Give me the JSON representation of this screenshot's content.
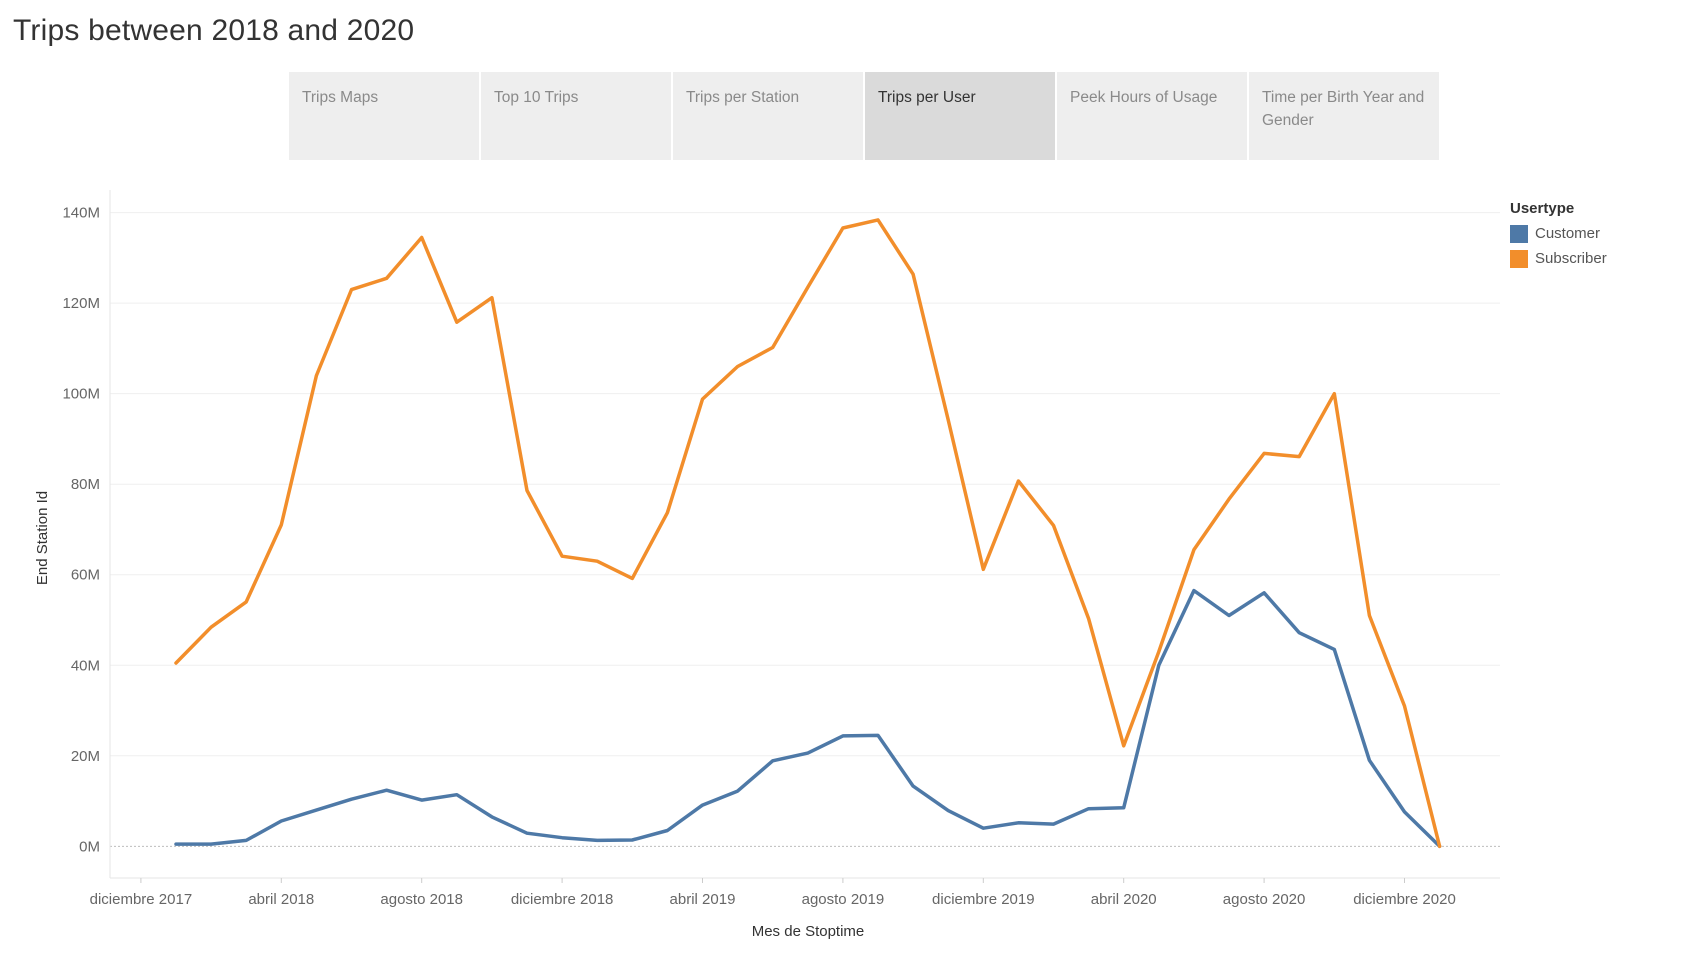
{
  "page_title": "Trips between 2018 and 2020",
  "tabs": [
    {
      "label": "Trips Maps",
      "active": false
    },
    {
      "label": "Top 10 Trips",
      "active": false
    },
    {
      "label": "Trips per Station",
      "active": false
    },
    {
      "label": "Trips per User",
      "active": true
    },
    {
      "label": "Peek Hours of Usage",
      "active": false
    },
    {
      "label": "Time per Birth Year and Gender",
      "active": false
    }
  ],
  "chart_data": {
    "type": "line",
    "xlabel": "Mes de Stoptime",
    "ylabel": "End Station Id",
    "x_months": [
      "2018-01",
      "2018-02",
      "2018-03",
      "2018-04",
      "2018-05",
      "2018-06",
      "2018-07",
      "2018-08",
      "2018-09",
      "2018-10",
      "2018-11",
      "2018-12",
      "2019-01",
      "2019-02",
      "2019-03",
      "2019-04",
      "2019-05",
      "2019-06",
      "2019-07",
      "2019-08",
      "2019-09",
      "2019-10",
      "2019-11",
      "2019-12",
      "2020-01",
      "2020-02",
      "2020-03",
      "2020-04",
      "2020-05",
      "2020-06",
      "2020-07",
      "2020-08",
      "2020-09",
      "2020-10",
      "2020-11",
      "2020-12",
      "2021-01"
    ],
    "x_ticks": [
      {
        "month": "2017-12",
        "label": "diciembre 2017"
      },
      {
        "month": "2018-04",
        "label": "abril 2018"
      },
      {
        "month": "2018-08",
        "label": "agosto 2018"
      },
      {
        "month": "2018-12",
        "label": "diciembre 2018"
      },
      {
        "month": "2019-04",
        "label": "abril 2019"
      },
      {
        "month": "2019-08",
        "label": "agosto 2019"
      },
      {
        "month": "2019-12",
        "label": "diciembre 2019"
      },
      {
        "month": "2020-04",
        "label": "abril 2020"
      },
      {
        "month": "2020-08",
        "label": "agosto 2020"
      },
      {
        "month": "2020-12",
        "label": "diciembre 2020"
      }
    ],
    "y_ticks": [
      {
        "value": 0,
        "label": "0M"
      },
      {
        "value": 20,
        "label": "20M"
      },
      {
        "value": 40,
        "label": "40M"
      },
      {
        "value": 60,
        "label": "60M"
      },
      {
        "value": 80,
        "label": "80M"
      },
      {
        "value": 100,
        "label": "100M"
      },
      {
        "value": 120,
        "label": "120M"
      },
      {
        "value": 140,
        "label": "140M"
      }
    ],
    "ylim": [
      -7,
      145
    ],
    "grid": true,
    "legend": {
      "title": "Usertype",
      "position": "top-right"
    },
    "series": [
      {
        "name": "Customer",
        "color": "#4e79a7",
        "values": [
          0.5,
          0.5,
          1.3,
          5.6,
          8.0,
          10.4,
          12.4,
          10.2,
          11.4,
          6.5,
          2.9,
          1.9,
          1.3,
          1.4,
          3.5,
          9.1,
          12.2,
          18.9,
          20.6,
          24.4,
          24.5,
          13.3,
          7.9,
          4.0,
          5.2,
          4.9,
          8.3,
          8.5,
          40.0,
          56.5,
          51.0,
          56.0,
          47.2,
          43.5,
          19.0,
          7.6,
          0.0
        ]
      },
      {
        "name": "Subscriber",
        "color": "#f28e2b",
        "values": [
          40.5,
          48.4,
          54.0,
          71.0,
          104.0,
          123.0,
          125.5,
          134.5,
          115.8,
          121.2,
          78.6,
          64.1,
          63.0,
          59.2,
          73.7,
          98.8,
          106.0,
          110.2,
          123.5,
          136.6,
          138.4,
          126.4,
          94.2,
          61.2,
          80.7,
          70.9,
          50.3,
          22.2,
          43.0,
          65.5,
          76.7,
          86.8,
          86.1,
          100.0,
          51.0,
          31.0,
          0.0
        ]
      }
    ]
  }
}
